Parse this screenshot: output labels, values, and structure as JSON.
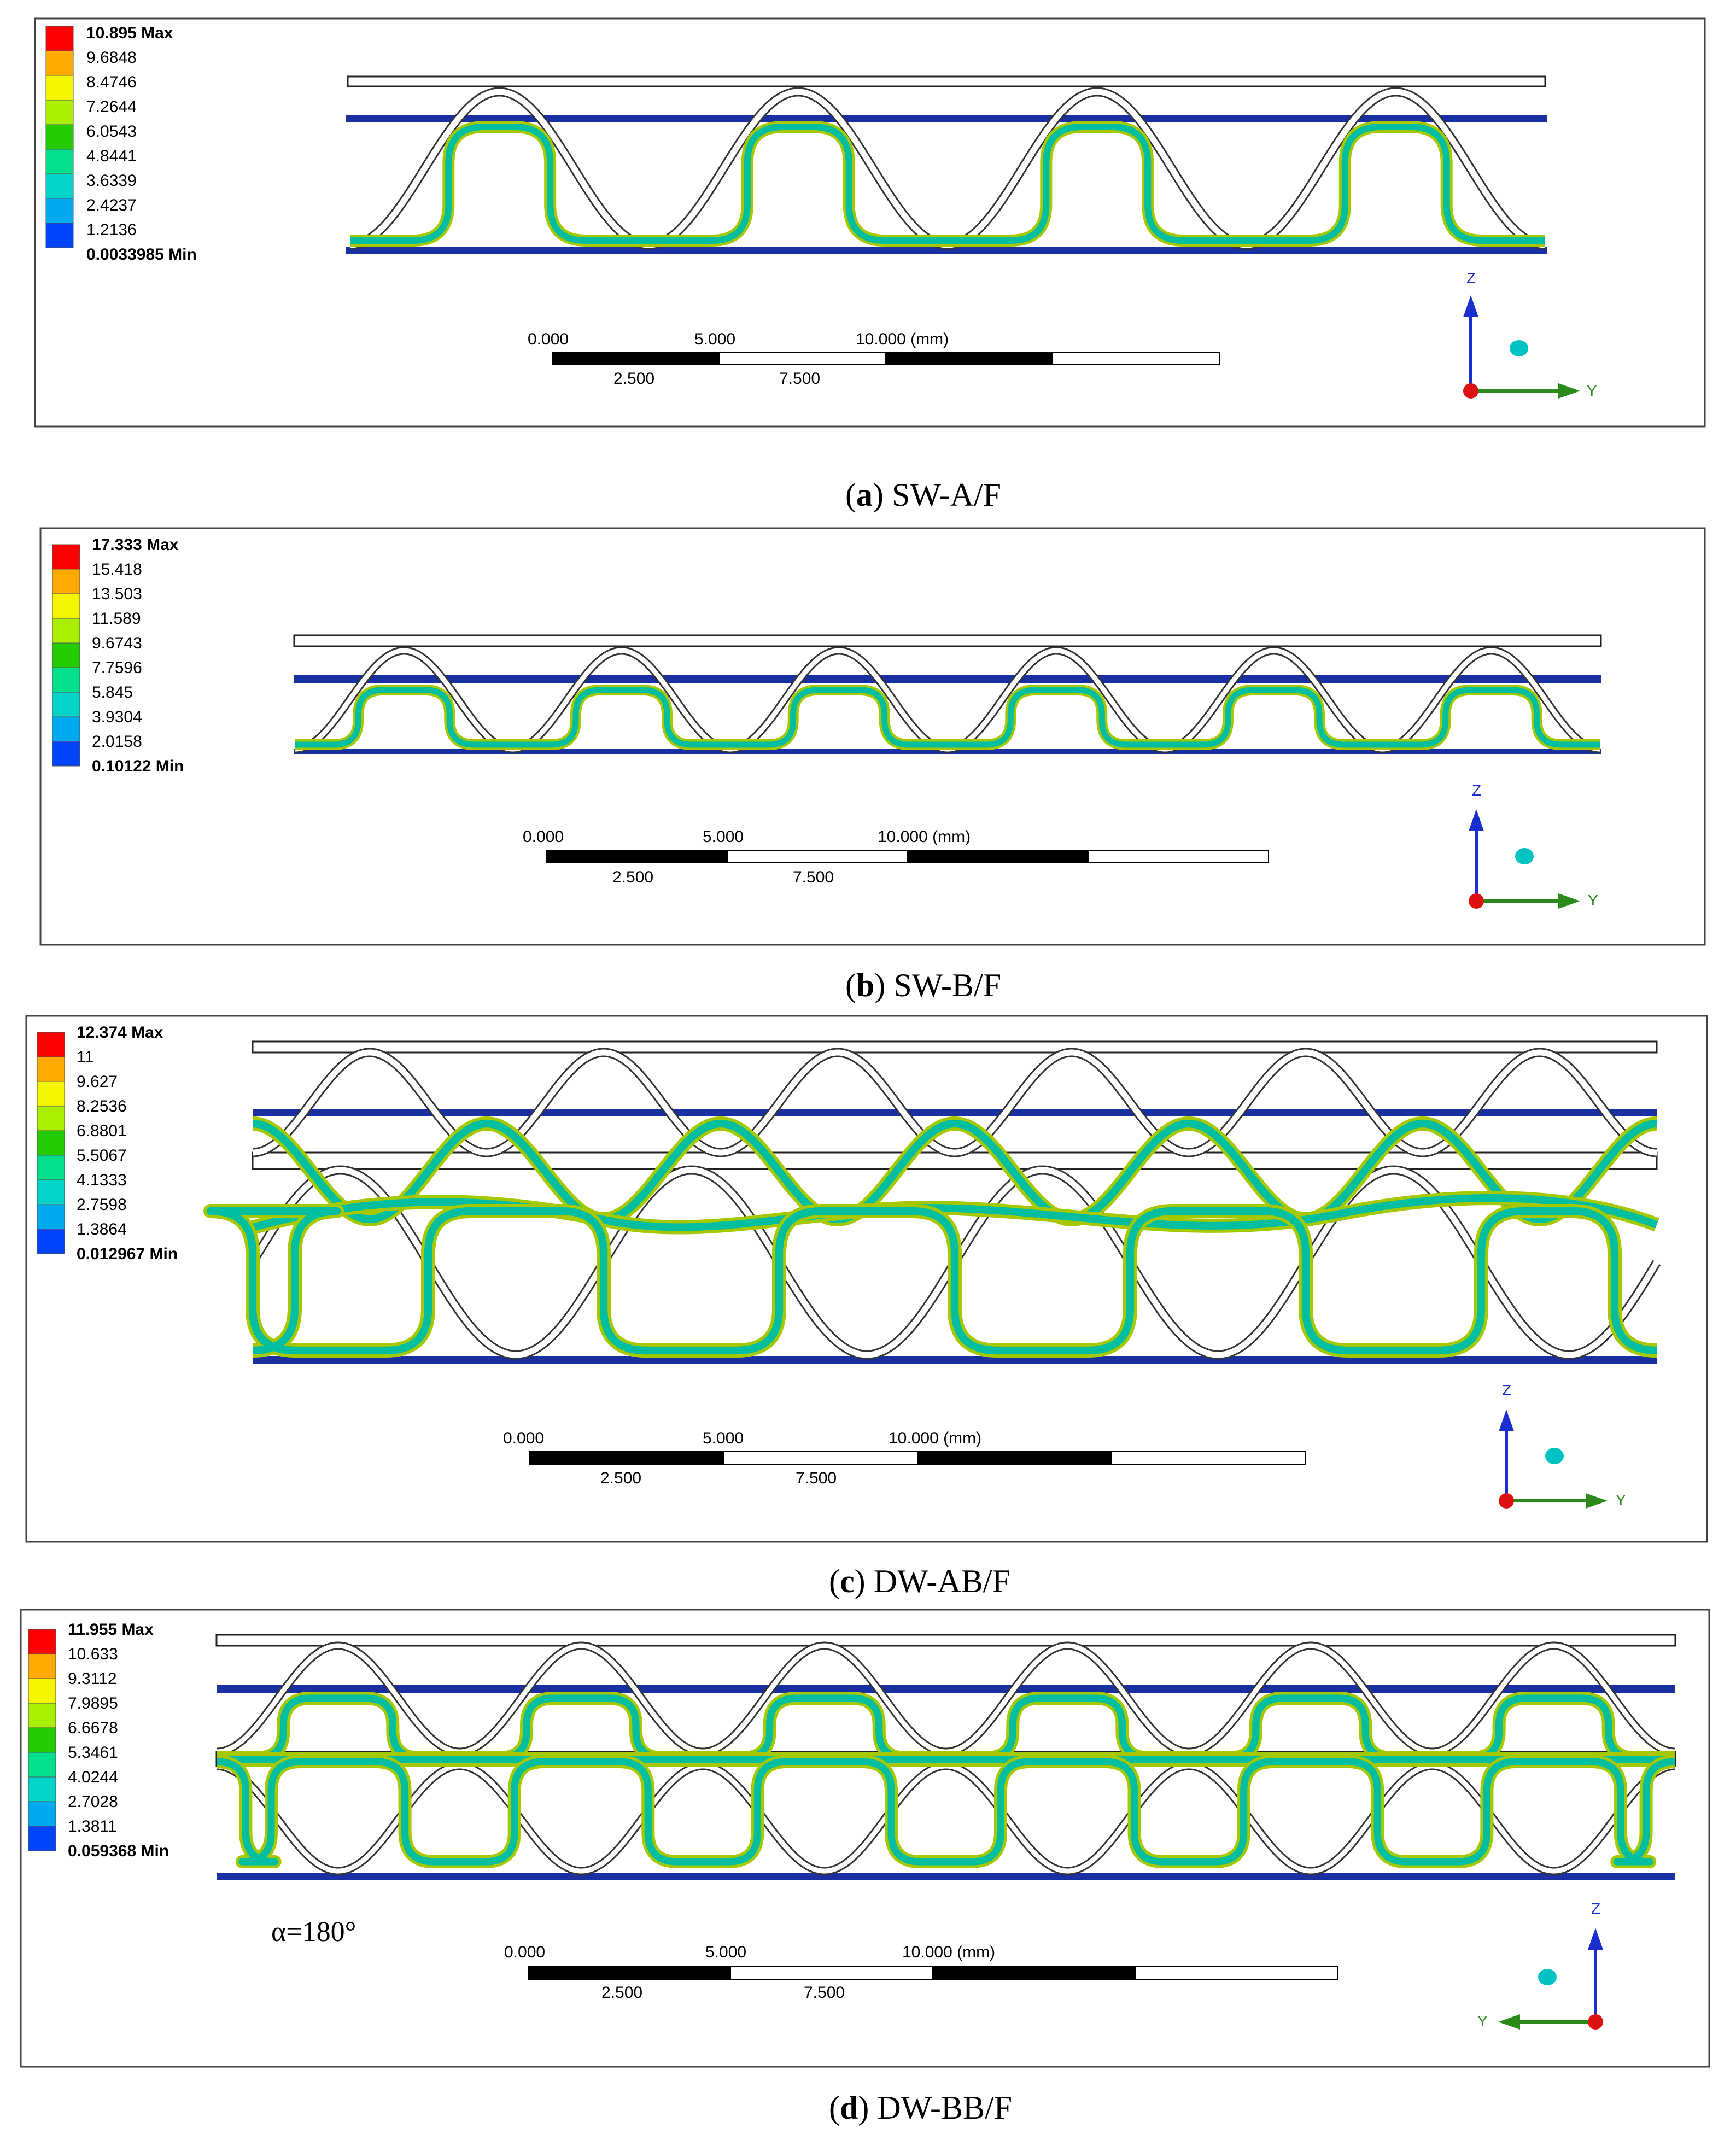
{
  "figure": {
    "panels": [
      {
        "id": "a",
        "caption_letter": "a",
        "caption_text": "SW-A/F",
        "legend": [
          "10.895 Max",
          "9.6848",
          "8.4746",
          "7.2644",
          "6.0543",
          "4.8441",
          "3.6339",
          "2.4237",
          "1.2136",
          "0.0033985 Min"
        ],
        "scale": {
          "top": [
            "0.000",
            "5.000",
            "10.000 (mm)"
          ],
          "bottom": [
            "2.500",
            "7.500"
          ]
        },
        "axes": {
          "vertical": "Z",
          "horizontal": "Y"
        }
      },
      {
        "id": "b",
        "caption_letter": "b",
        "caption_text": "SW-B/F",
        "legend": [
          "17.333 Max",
          "15.418",
          "13.503",
          "11.589",
          "9.6743",
          "7.7596",
          "5.845",
          "3.9304",
          "2.0158",
          "0.10122 Min"
        ],
        "scale": {
          "top": [
            "0.000",
            "5.000",
            "10.000 (mm)"
          ],
          "bottom": [
            "2.500",
            "7.500"
          ]
        },
        "axes": {
          "vertical": "Z",
          "horizontal": "Y"
        }
      },
      {
        "id": "c",
        "caption_letter": "c",
        "caption_text": "DW-AB/F",
        "legend": [
          "12.374 Max",
          "11",
          "9.627",
          "8.2536",
          "6.8801",
          "5.5067",
          "4.1333",
          "2.7598",
          "1.3864",
          "0.012967 Min"
        ],
        "scale": {
          "top": [
            "0.000",
            "5.000",
            "10.000 (mm)"
          ],
          "bottom": [
            "2.500",
            "7.500"
          ]
        },
        "axes": {
          "vertical": "Z",
          "horizontal": "Y"
        }
      },
      {
        "id": "d",
        "caption_letter": "d",
        "caption_text": "DW-BB/F",
        "legend": [
          "11.955 Max",
          "10.633",
          "9.3112",
          "7.9895",
          "6.6678",
          "5.3461",
          "4.0244",
          "2.7028",
          "1.3811",
          "0.059368 Min"
        ],
        "scale": {
          "top": [
            "0.000",
            "5.000",
            "10.000 (mm)"
          ],
          "bottom": [
            "2.500",
            "7.500"
          ]
        },
        "axes": {
          "vertical": "Z",
          "horizontal": "Y"
        },
        "annotation": "α=180°"
      }
    ],
    "legend_colors": [
      "#ff0000",
      "#ffaa00",
      "#f5f500",
      "#aaee00",
      "#22cc00",
      "#00e08a",
      "#00d4c8",
      "#00aaee",
      "#0044ff"
    ],
    "colors": {
      "frame": "#444444",
      "plate_blue": "#1a2fa0",
      "contour_inner": "#00bfa0",
      "contour_edge": "#a6c800",
      "axis_z": "#1a2ecf",
      "axis_y": "#2a8a1a",
      "axis_origin": "#dd1111",
      "axis_dot": "#00c2c2"
    }
  }
}
